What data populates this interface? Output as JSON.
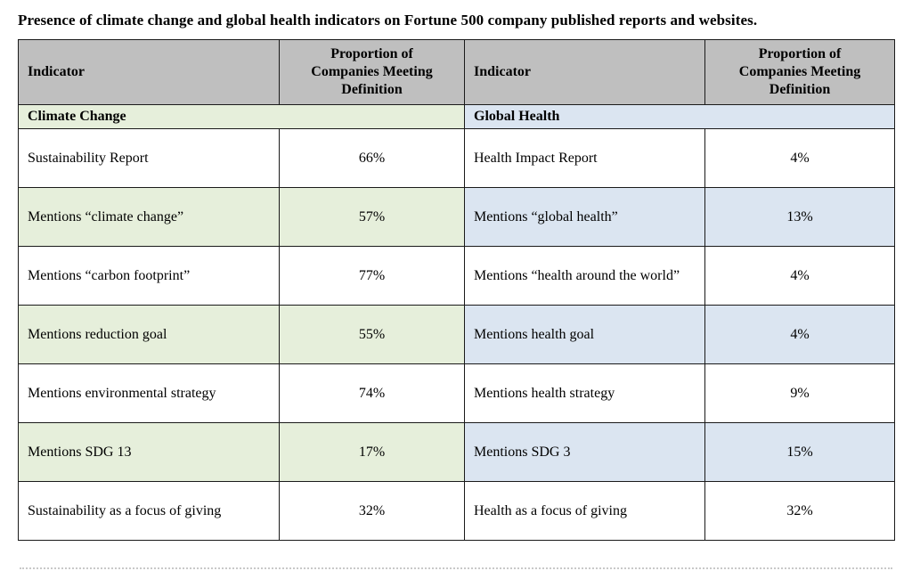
{
  "title": "Presence of climate change and global health indicators on Fortune 500 company published reports and websites.",
  "colors": {
    "header_bg": "#bfbfbf",
    "climate_bg": "#e6efdb",
    "health_bg": "#dbe5f1",
    "border": "#1a1a1a"
  },
  "table": {
    "header": {
      "indicator_label": "Indicator",
      "proportion_label": "Proportion of\nCompanies Meeting\nDefinition"
    },
    "sections": {
      "climate": "Climate Change",
      "health": "Global Health"
    },
    "rows": [
      {
        "left_indicator": "Sustainability Report",
        "left_value": "66%",
        "right_indicator": "Health Impact Report",
        "right_value": "4%"
      },
      {
        "left_indicator": "Mentions “climate change”",
        "left_value": "57%",
        "right_indicator": "Mentions “global health”",
        "right_value": "13%"
      },
      {
        "left_indicator": "Mentions “carbon footprint”",
        "left_value": "77%",
        "right_indicator": "Mentions “health around the world”",
        "right_value": "4%"
      },
      {
        "left_indicator": "Mentions reduction goal",
        "left_value": "55%",
        "right_indicator": "Mentions health goal",
        "right_value": "4%"
      },
      {
        "left_indicator": "Mentions environmental strategy",
        "left_value": "74%",
        "right_indicator": "Mentions health strategy",
        "right_value": "9%"
      },
      {
        "left_indicator": "Mentions SDG 13",
        "left_value": "17%",
        "right_indicator": "Mentions SDG 3",
        "right_value": "15%"
      },
      {
        "left_indicator": "Sustainability as a focus of giving",
        "left_value": "32%",
        "right_indicator": "Health as a focus of giving",
        "right_value": "32%"
      }
    ]
  }
}
